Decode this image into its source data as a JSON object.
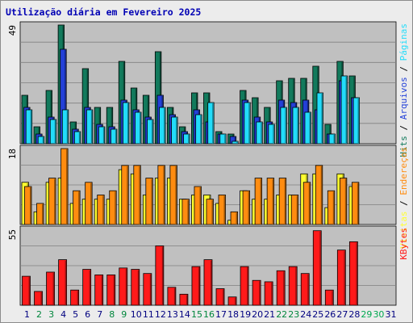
{
  "title": "Utilização diária em Fevereiro 2025",
  "colors": {
    "hits": "#127a5c",
    "files": "#2340d8",
    "pages": "#22dcfa",
    "visits": "#ffff30",
    "sites": "#ff8c10",
    "kbytes": "#ff1a1a",
    "weekend_day": "#00863c",
    "weekday": "#000080",
    "future_day": "#00a850"
  },
  "chart_data": [
    {
      "type": "bar",
      "title": "",
      "ymax_label": "49",
      "ylim": [
        0,
        49
      ],
      "side_labels": [
        {
          "text": "Hits",
          "color": "#127a5c"
        },
        {
          "text": "Arquivos",
          "color": "#2340d8"
        },
        {
          "text": "Páginas",
          "color": "#22dcfa"
        }
      ],
      "categories": [
        "1",
        "2",
        "3",
        "4",
        "5",
        "6",
        "7",
        "8",
        "9",
        "10",
        "11",
        "12",
        "13",
        "14",
        "15",
        "16",
        "17",
        "18",
        "19",
        "20",
        "21",
        "22",
        "23",
        "24",
        "25",
        "26",
        "27",
        "28",
        "29",
        "30",
        "31"
      ],
      "series": [
        {
          "name": "Hits",
          "values": [
            20,
            7,
            22,
            49,
            9,
            31,
            15,
            15,
            34,
            23,
            20,
            38,
            15,
            7,
            21,
            21,
            5,
            4,
            22,
            19,
            15,
            26,
            27,
            27,
            32,
            8,
            34,
            28,
            0,
            0,
            0
          ]
        },
        {
          "name": "Arquivos",
          "values": [
            15,
            4,
            11,
            39,
            6,
            15,
            8,
            7,
            18,
            14,
            11,
            20,
            12,
            5,
            14,
            9,
            4,
            3,
            18,
            11,
            9,
            18,
            17,
            18,
            14,
            4,
            26,
            19,
            0,
            0,
            0
          ]
        },
        {
          "name": "Páginas",
          "values": [
            14,
            3,
            10,
            14,
            5,
            14,
            7,
            6,
            17,
            13,
            10,
            15,
            11,
            4,
            12,
            17,
            4,
            1,
            17,
            9,
            8,
            15,
            15,
            13,
            21,
            4,
            28,
            19,
            0,
            0,
            0
          ]
        }
      ]
    },
    {
      "type": "bar",
      "title": "",
      "ymax_label": "18",
      "ylim": [
        0,
        18
      ],
      "side_labels": [
        {
          "text": "Visitas",
          "color": "#ffff30"
        },
        {
          "text": "Endereços",
          "color": "#ff8c10"
        }
      ],
      "categories": [
        "1",
        "2",
        "3",
        "4",
        "5",
        "6",
        "7",
        "8",
        "9",
        "10",
        "11",
        "12",
        "13",
        "14",
        "15",
        "16",
        "17",
        "18",
        "19",
        "20",
        "21",
        "22",
        "23",
        "24",
        "25",
        "26",
        "27",
        "28",
        "29",
        "30",
        "31"
      ],
      "series": [
        {
          "name": "Visitas",
          "values": [
            10,
            3,
            10,
            11,
            5,
            6,
            6,
            6,
            13,
            12,
            7,
            11,
            11,
            6,
            7,
            7,
            5,
            1,
            8,
            6,
            6,
            7,
            7,
            12,
            12,
            4,
            12,
            9,
            0,
            0,
            0
          ]
        },
        {
          "name": "Endereços",
          "values": [
            9,
            5,
            11,
            18,
            8,
            10,
            7,
            8,
            14,
            14,
            11,
            14,
            14,
            6,
            9,
            6,
            7,
            3,
            8,
            11,
            11,
            11,
            7,
            10,
            14,
            8,
            11,
            10,
            0,
            0,
            0
          ]
        }
      ]
    },
    {
      "type": "bar",
      "title": "",
      "ymax_label": "55",
      "ylim": [
        0,
        55
      ],
      "side_labels": [
        {
          "text": "KBytes",
          "color": "#ff1a1a"
        }
      ],
      "categories": [
        "1",
        "2",
        "3",
        "4",
        "5",
        "6",
        "7",
        "8",
        "9",
        "10",
        "11",
        "12",
        "13",
        "14",
        "15",
        "16",
        "17",
        "18",
        "19",
        "20",
        "21",
        "22",
        "23",
        "24",
        "25",
        "26",
        "27",
        "28",
        "29",
        "30",
        "31"
      ],
      "series": [
        {
          "name": "KBytes",
          "values": [
            21,
            10,
            24,
            33,
            11,
            26,
            22,
            22,
            27,
            26,
            23,
            43,
            13,
            8,
            28,
            33,
            12,
            6,
            28,
            18,
            17,
            25,
            28,
            23,
            54,
            11,
            40,
            46,
            0,
            0,
            0
          ]
        }
      ]
    }
  ],
  "day_label_types": [
    "wd",
    "we",
    "we",
    "wd",
    "wd",
    "wd",
    "wd",
    "we",
    "we",
    "wd",
    "wd",
    "wd",
    "wd",
    "wd",
    "we",
    "we",
    "wd",
    "wd",
    "wd",
    "wd",
    "wd",
    "we",
    "we",
    "wd",
    "wd",
    "wd",
    "wd",
    "wd",
    "fut",
    "fut",
    "wd"
  ]
}
